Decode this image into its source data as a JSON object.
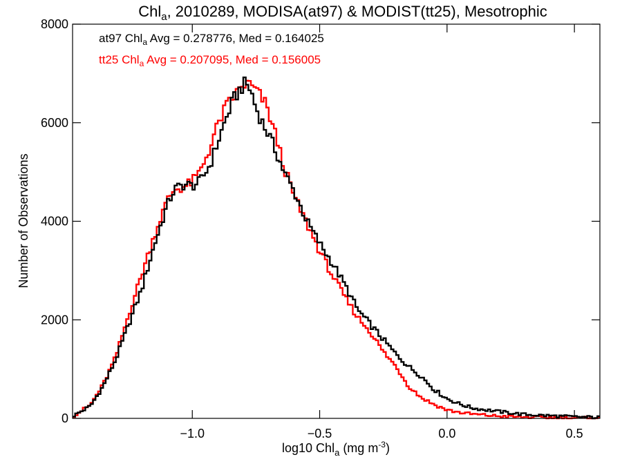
{
  "chart_data": {
    "type": "line",
    "title": {
      "pre": "Chl",
      "sub": "a",
      "post": ", 2010289, MODISA(at97) & MODIST(tt25), Mesotrophic"
    },
    "xlabel": {
      "pre": "log10 Chl",
      "sub": "a",
      "mid": " (mg m",
      "sup": "-3",
      "post": ")"
    },
    "ylabel": "Number of Observations",
    "xlim": [
      -1.47,
      0.6
    ],
    "ylim": [
      0,
      8000
    ],
    "x_ticks": [
      -1.0,
      -0.5,
      0.0,
      0.5
    ],
    "x_tick_labels": [
      "−1.0",
      "−0.5",
      "0.0",
      "0.5"
    ],
    "y_ticks": [
      0,
      2000,
      4000,
      6000,
      8000
    ],
    "y_tick_labels": [
      "0",
      "2000",
      "4000",
      "6000",
      "8000"
    ],
    "grid": false,
    "legend_position": "top-left",
    "bin_width": 0.01,
    "annotations": [
      {
        "pre": "at97 Chl",
        "sub": "a",
        "post": " Avg = 0.278776, Med = 0.164025",
        "color": "#000000"
      },
      {
        "pre": "tt25 Chl",
        "sub": "a",
        "post": " Avg = 0.207095, Med = 0.156005",
        "color": "#ff0000"
      }
    ],
    "series": [
      {
        "color": "#000000",
        "curve": [
          [
            -1.47,
            40
          ],
          [
            -1.4,
            250
          ],
          [
            -1.35,
            650
          ],
          [
            -1.3,
            1200
          ],
          [
            -1.25,
            1900
          ],
          [
            -1.2,
            2600
          ],
          [
            -1.15,
            3500
          ],
          [
            -1.1,
            4300
          ],
          [
            -1.07,
            4650
          ],
          [
            -1.03,
            4750
          ],
          [
            -1.0,
            4720
          ],
          [
            -0.97,
            4800
          ],
          [
            -0.93,
            5150
          ],
          [
            -0.9,
            5600
          ],
          [
            -0.87,
            6050
          ],
          [
            -0.84,
            6450
          ],
          [
            -0.81,
            6700
          ],
          [
            -0.79,
            6800
          ],
          [
            -0.77,
            6650
          ],
          [
            -0.75,
            6300
          ],
          [
            -0.72,
            5950
          ],
          [
            -0.7,
            5750
          ],
          [
            -0.67,
            5400
          ],
          [
            -0.64,
            5000
          ],
          [
            -0.6,
            4600
          ],
          [
            -0.55,
            4000
          ],
          [
            -0.5,
            3550
          ],
          [
            -0.45,
            3150
          ],
          [
            -0.4,
            2700
          ],
          [
            -0.35,
            2200
          ],
          [
            -0.3,
            1900
          ],
          [
            -0.25,
            1600
          ],
          [
            -0.2,
            1300
          ],
          [
            -0.15,
            1050
          ],
          [
            -0.1,
            850
          ],
          [
            -0.05,
            580
          ],
          [
            0.0,
            400
          ],
          [
            0.05,
            290
          ],
          [
            0.1,
            210
          ],
          [
            0.2,
            140
          ],
          [
            0.3,
            80
          ],
          [
            0.4,
            55
          ],
          [
            0.5,
            30
          ],
          [
            0.6,
            20
          ]
        ]
      },
      {
        "color": "#ff0000",
        "curve": [
          [
            -1.47,
            40
          ],
          [
            -1.4,
            270
          ],
          [
            -1.35,
            680
          ],
          [
            -1.3,
            1250
          ],
          [
            -1.25,
            2100
          ],
          [
            -1.2,
            2900
          ],
          [
            -1.15,
            3700
          ],
          [
            -1.1,
            4400
          ],
          [
            -1.07,
            4650
          ],
          [
            -1.03,
            4700
          ],
          [
            -1.0,
            4800
          ],
          [
            -0.97,
            5000
          ],
          [
            -0.93,
            5500
          ],
          [
            -0.9,
            5950
          ],
          [
            -0.87,
            6300
          ],
          [
            -0.84,
            6500
          ],
          [
            -0.81,
            6700
          ],
          [
            -0.79,
            6800
          ],
          [
            -0.77,
            6750
          ],
          [
            -0.75,
            6650
          ],
          [
            -0.72,
            6450
          ],
          [
            -0.7,
            6200
          ],
          [
            -0.67,
            5700
          ],
          [
            -0.64,
            5100
          ],
          [
            -0.6,
            4500
          ],
          [
            -0.55,
            3950
          ],
          [
            -0.5,
            3400
          ],
          [
            -0.45,
            2900
          ],
          [
            -0.4,
            2450
          ],
          [
            -0.35,
            2050
          ],
          [
            -0.3,
            1750
          ],
          [
            -0.25,
            1350
          ],
          [
            -0.2,
            1050
          ],
          [
            -0.15,
            650
          ],
          [
            -0.1,
            420
          ],
          [
            -0.05,
            280
          ],
          [
            0.0,
            170
          ],
          [
            0.05,
            120
          ],
          [
            0.1,
            85
          ],
          [
            0.2,
            45
          ],
          [
            0.3,
            25
          ],
          [
            0.4,
            15
          ],
          [
            0.5,
            8
          ],
          [
            0.6,
            5
          ]
        ]
      }
    ]
  }
}
